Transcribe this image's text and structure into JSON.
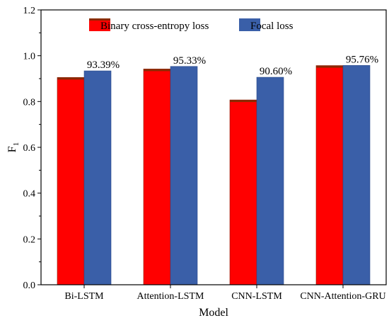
{
  "chart_data": {
    "type": "bar",
    "xlabel": "Model",
    "ylabel": "F",
    "ylabel_subscript": "1",
    "ylim": [
      0,
      1.2
    ],
    "yticks": [
      "0.0",
      "0.2",
      "0.4",
      "0.6",
      "0.8",
      "1.0",
      "1.2"
    ],
    "categories": [
      "Bi-LSTM",
      "Attention-LSTM",
      "CNN-LSTM",
      "CNN-Attention-GRU"
    ],
    "series": [
      {
        "name": "Binary cross-entropy loss",
        "color": "#ff0000",
        "cap_color": "#8b2a00",
        "values": [
          0.905,
          0.942,
          0.807,
          0.957
        ]
      },
      {
        "name": "Focal loss",
        "color": "#3a5fa8",
        "values": [
          0.9339,
          0.9533,
          0.906,
          0.9576
        ],
        "labels": [
          "93.39%",
          "95.33%",
          "90.60%",
          "95.76%"
        ]
      }
    ],
    "legend": {
      "position": "top-center"
    },
    "grid": false
  }
}
